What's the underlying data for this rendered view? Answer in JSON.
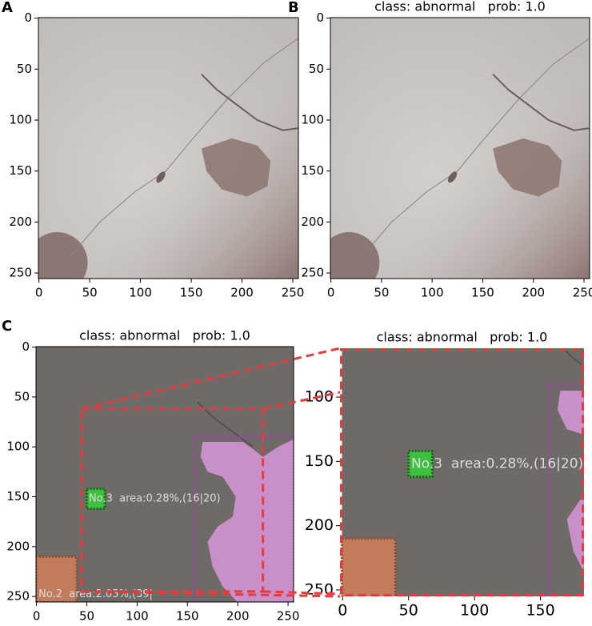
{
  "figure": {
    "panels": [
      {
        "label": "A",
        "xlim": [
          -0.5,
          255.5
        ],
        "ylim": [
          255.5,
          -0.5
        ],
        "xticks": [
          0,
          50,
          100,
          150,
          200,
          250
        ],
        "yticks": [
          0,
          50,
          100,
          150,
          200,
          250
        ]
      },
      {
        "label": "B",
        "title": "class: abnormal   prob: 1.0",
        "xlim": [
          -0.5,
          255.5
        ],
        "ylim": [
          255.5,
          -0.5
        ],
        "xticks": [
          0,
          50,
          100,
          150,
          200,
          250
        ],
        "yticks": [
          0,
          50,
          100,
          150,
          200,
          250
        ]
      },
      {
        "label": "C",
        "title": "class: abnormal   prob: 1.0",
        "xlim": [
          -0.5,
          255.5
        ],
        "ylim": [
          255.5,
          -0.5
        ],
        "xticks": [
          0,
          50,
          100,
          150,
          200,
          250
        ],
        "yticks": [
          0,
          50,
          100,
          150,
          200,
          250
        ],
        "annotations": [
          "No.3  area:0.28%,(16|20)",
          "No.2  area:2.05%,(39|"
        ]
      },
      {
        "title": "class: abnormal   prob: 1.0",
        "xlim": [
          -2,
          183
        ],
        "ylim": [
          255,
          62
        ],
        "xticks": [
          0,
          50,
          100,
          150
        ],
        "yticks": [
          100,
          150,
          200,
          250
        ],
        "annotations": [
          "No.3  area:0.28%,(16|20)"
        ]
      }
    ]
  }
}
